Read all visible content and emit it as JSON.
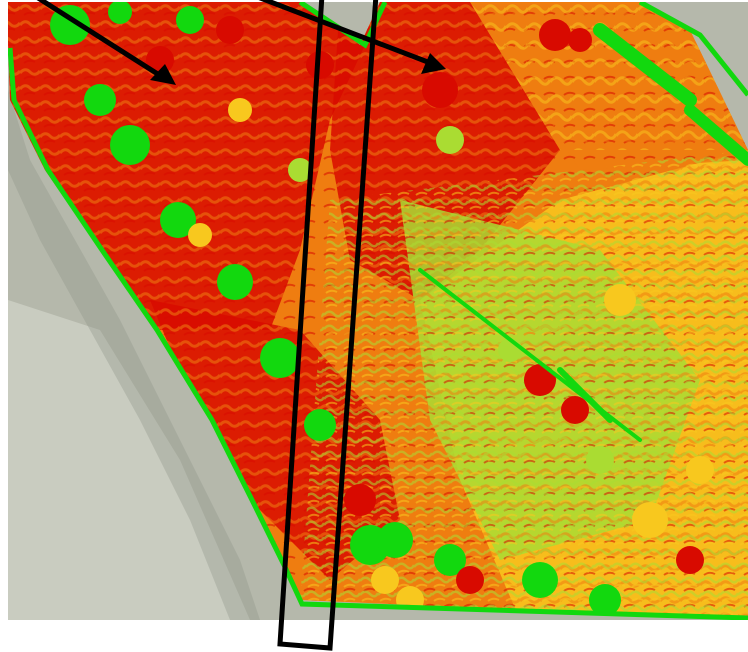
{
  "map": {
    "type": "false-color vegetation index field map",
    "palette": {
      "ground": "#b5b8ab",
      "ground_light": "#c9ccc0",
      "ground_shadow": "#8d9286",
      "very_high": "#d80a00",
      "high": "#ef7d10",
      "medium": "#f8c81e",
      "low": "#aadc32",
      "very_low": "#12d80e",
      "outline": "#000000",
      "page": "#ffffff"
    },
    "annotations": {
      "arrows": 2,
      "transect_box": 1
    }
  }
}
